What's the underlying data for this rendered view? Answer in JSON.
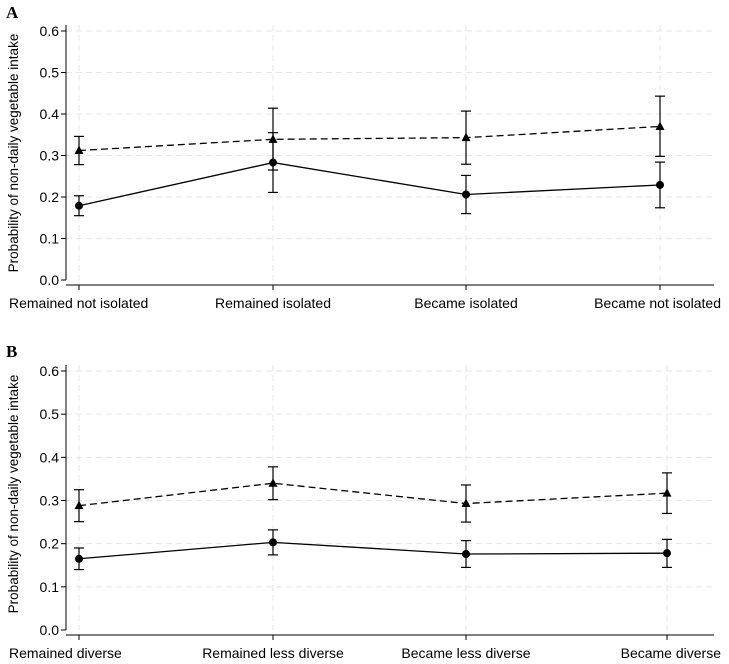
{
  "chart_data": [
    {
      "panel": "A",
      "type": "line",
      "ylabel": "Probability of non-daily vegetable intake",
      "xlabel": "",
      "ylim": [
        0,
        0.6
      ],
      "yticks": [
        "0.0",
        "0.1",
        "0.2",
        "0.3",
        "0.4",
        "0.5",
        "0.6"
      ],
      "categories": [
        "Remained not isolated",
        "Remained isolated",
        "Became isolated",
        "Became not isolated"
      ],
      "series": [
        {
          "name": "dashed-triangle",
          "style": "dashed",
          "marker": "triangle",
          "values": [
            0.312,
            0.339,
            0.343,
            0.37
          ],
          "ci_low": [
            0.278,
            0.265,
            0.279,
            0.298
          ],
          "ci_high": [
            0.346,
            0.414,
            0.407,
            0.443
          ]
        },
        {
          "name": "solid-circle",
          "style": "solid",
          "marker": "circle",
          "values": [
            0.179,
            0.283,
            0.206,
            0.229
          ],
          "ci_low": [
            0.155,
            0.211,
            0.16,
            0.174
          ],
          "ci_high": [
            0.203,
            0.355,
            0.252,
            0.284
          ]
        }
      ]
    },
    {
      "panel": "B",
      "type": "line",
      "ylabel": "Probability of non-daily vegetable intake",
      "xlabel": "",
      "ylim": [
        0,
        0.6
      ],
      "yticks": [
        "0.0",
        "0.1",
        "0.2",
        "0.3",
        "0.4",
        "0.5",
        "0.6"
      ],
      "categories": [
        "Remained diverse",
        "Remained less diverse",
        "Became less diverse",
        "Became diverse"
      ],
      "series": [
        {
          "name": "dashed-triangle",
          "style": "dashed",
          "marker": "triangle",
          "values": [
            0.288,
            0.34,
            0.293,
            0.317
          ],
          "ci_low": [
            0.251,
            0.302,
            0.25,
            0.27
          ],
          "ci_high": [
            0.325,
            0.378,
            0.336,
            0.364
          ]
        },
        {
          "name": "solid-circle",
          "style": "solid",
          "marker": "circle",
          "values": [
            0.165,
            0.203,
            0.176,
            0.178
          ],
          "ci_low": [
            0.14,
            0.174,
            0.145,
            0.145
          ],
          "ci_high": [
            0.19,
            0.232,
            0.207,
            0.21
          ]
        }
      ]
    }
  ]
}
